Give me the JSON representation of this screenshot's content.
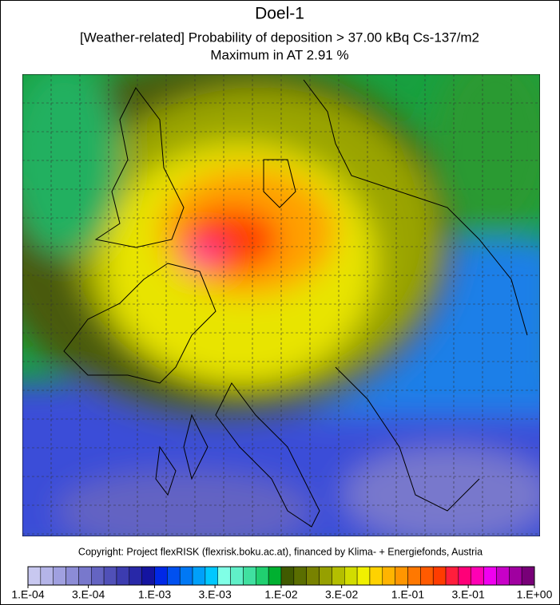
{
  "title": "Doel-1",
  "subtitle": "[Weather-related] Probability of deposition >  37.00 kBq Cs-137/m2",
  "maximum": "Maximum in AT   2.91 %",
  "copyright": "Copyright: Project flexRISK (flexrisk.boku.ac.at), financed by Klima- + Energiefonds, Austria",
  "colorbar": {
    "scale": "log",
    "range": [
      0.0001,
      1
    ],
    "ticks": [
      {
        "value": 0.0001,
        "label": "1.E-04"
      },
      {
        "value": 0.0003,
        "label": "3.E-04"
      },
      {
        "value": 0.001,
        "label": "1.E-03"
      },
      {
        "value": 0.003,
        "label": "3.E-03"
      },
      {
        "value": 0.01,
        "label": "1.E-02"
      },
      {
        "value": 0.03,
        "label": "3.E-02"
      },
      {
        "value": 0.1,
        "label": "1.E-01"
      },
      {
        "value": 0.3,
        "label": "3.E-01"
      },
      {
        "value": 1,
        "label": "1.E+00"
      }
    ],
    "colors": [
      "#c8c8f0",
      "#b4b4e8",
      "#a0a0e0",
      "#8c8cd6",
      "#7878cc",
      "#6464c2",
      "#5050b8",
      "#3c3cb0",
      "#2828a8",
      "#1414a0",
      "#0028e6",
      "#0050f0",
      "#0078f5",
      "#00a0fa",
      "#00c8ff",
      "#80ffe6",
      "#60f0c8",
      "#40e0a0",
      "#20d070",
      "#00b030",
      "#405a00",
      "#5a6e00",
      "#788200",
      "#96a000",
      "#b4be00",
      "#d2dc00",
      "#f0f000",
      "#ffd200",
      "#ffb400",
      "#ff9600",
      "#ff7800",
      "#ff5a00",
      "#ff3c00",
      "#ff1e3c",
      "#ff0078",
      "#ff00b4",
      "#f000f0",
      "#c800c8",
      "#a000a0",
      "#780078"
    ]
  }
}
